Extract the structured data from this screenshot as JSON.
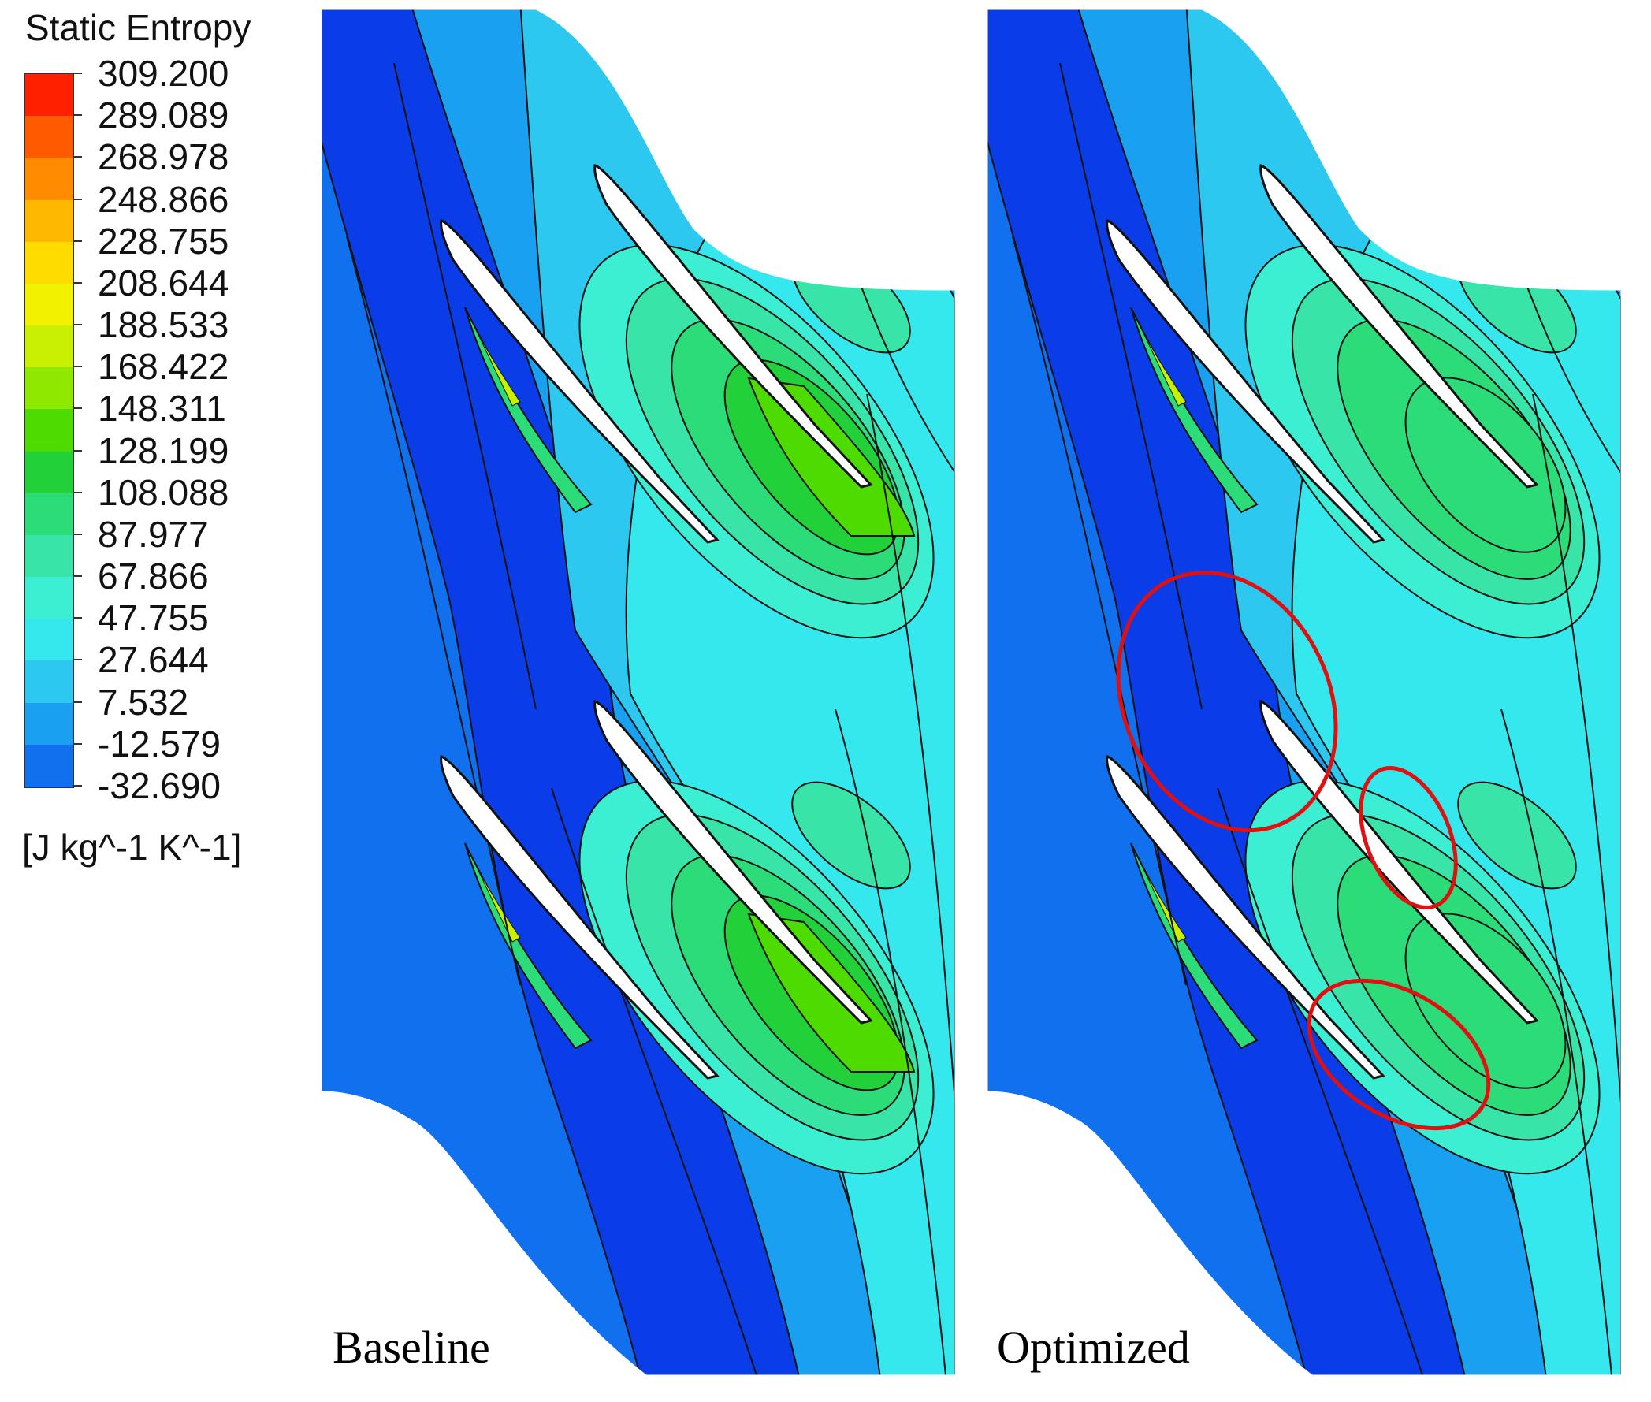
{
  "chart_data": {
    "type": "heatmap",
    "legend": {
      "title": "Static Entropy",
      "unit": "[J kg^-1 K^-1]",
      "levels": [
        "309.200",
        "289.089",
        "268.978",
        "248.866",
        "228.755",
        "208.644",
        "188.533",
        "168.422",
        "148.311",
        "128.199",
        "108.088",
        "87.977",
        "67.866",
        "47.755",
        "27.644",
        "7.532",
        "-12.579",
        "-32.690"
      ],
      "colors": [
        "#ff2000",
        "#ff5a00",
        "#ff8c00",
        "#ffb800",
        "#ffdc00",
        "#f2f200",
        "#c8f000",
        "#8ee800",
        "#4edc00",
        "#22d03a",
        "#2cdc78",
        "#38e4a8",
        "#3ceed2",
        "#34e8ee",
        "#2cc8f0",
        "#1aa0f0",
        "#1070ee",
        "#0a3ce8"
      ]
    },
    "panels": [
      {
        "label": "Baseline"
      },
      {
        "label": "Optimized"
      }
    ]
  }
}
